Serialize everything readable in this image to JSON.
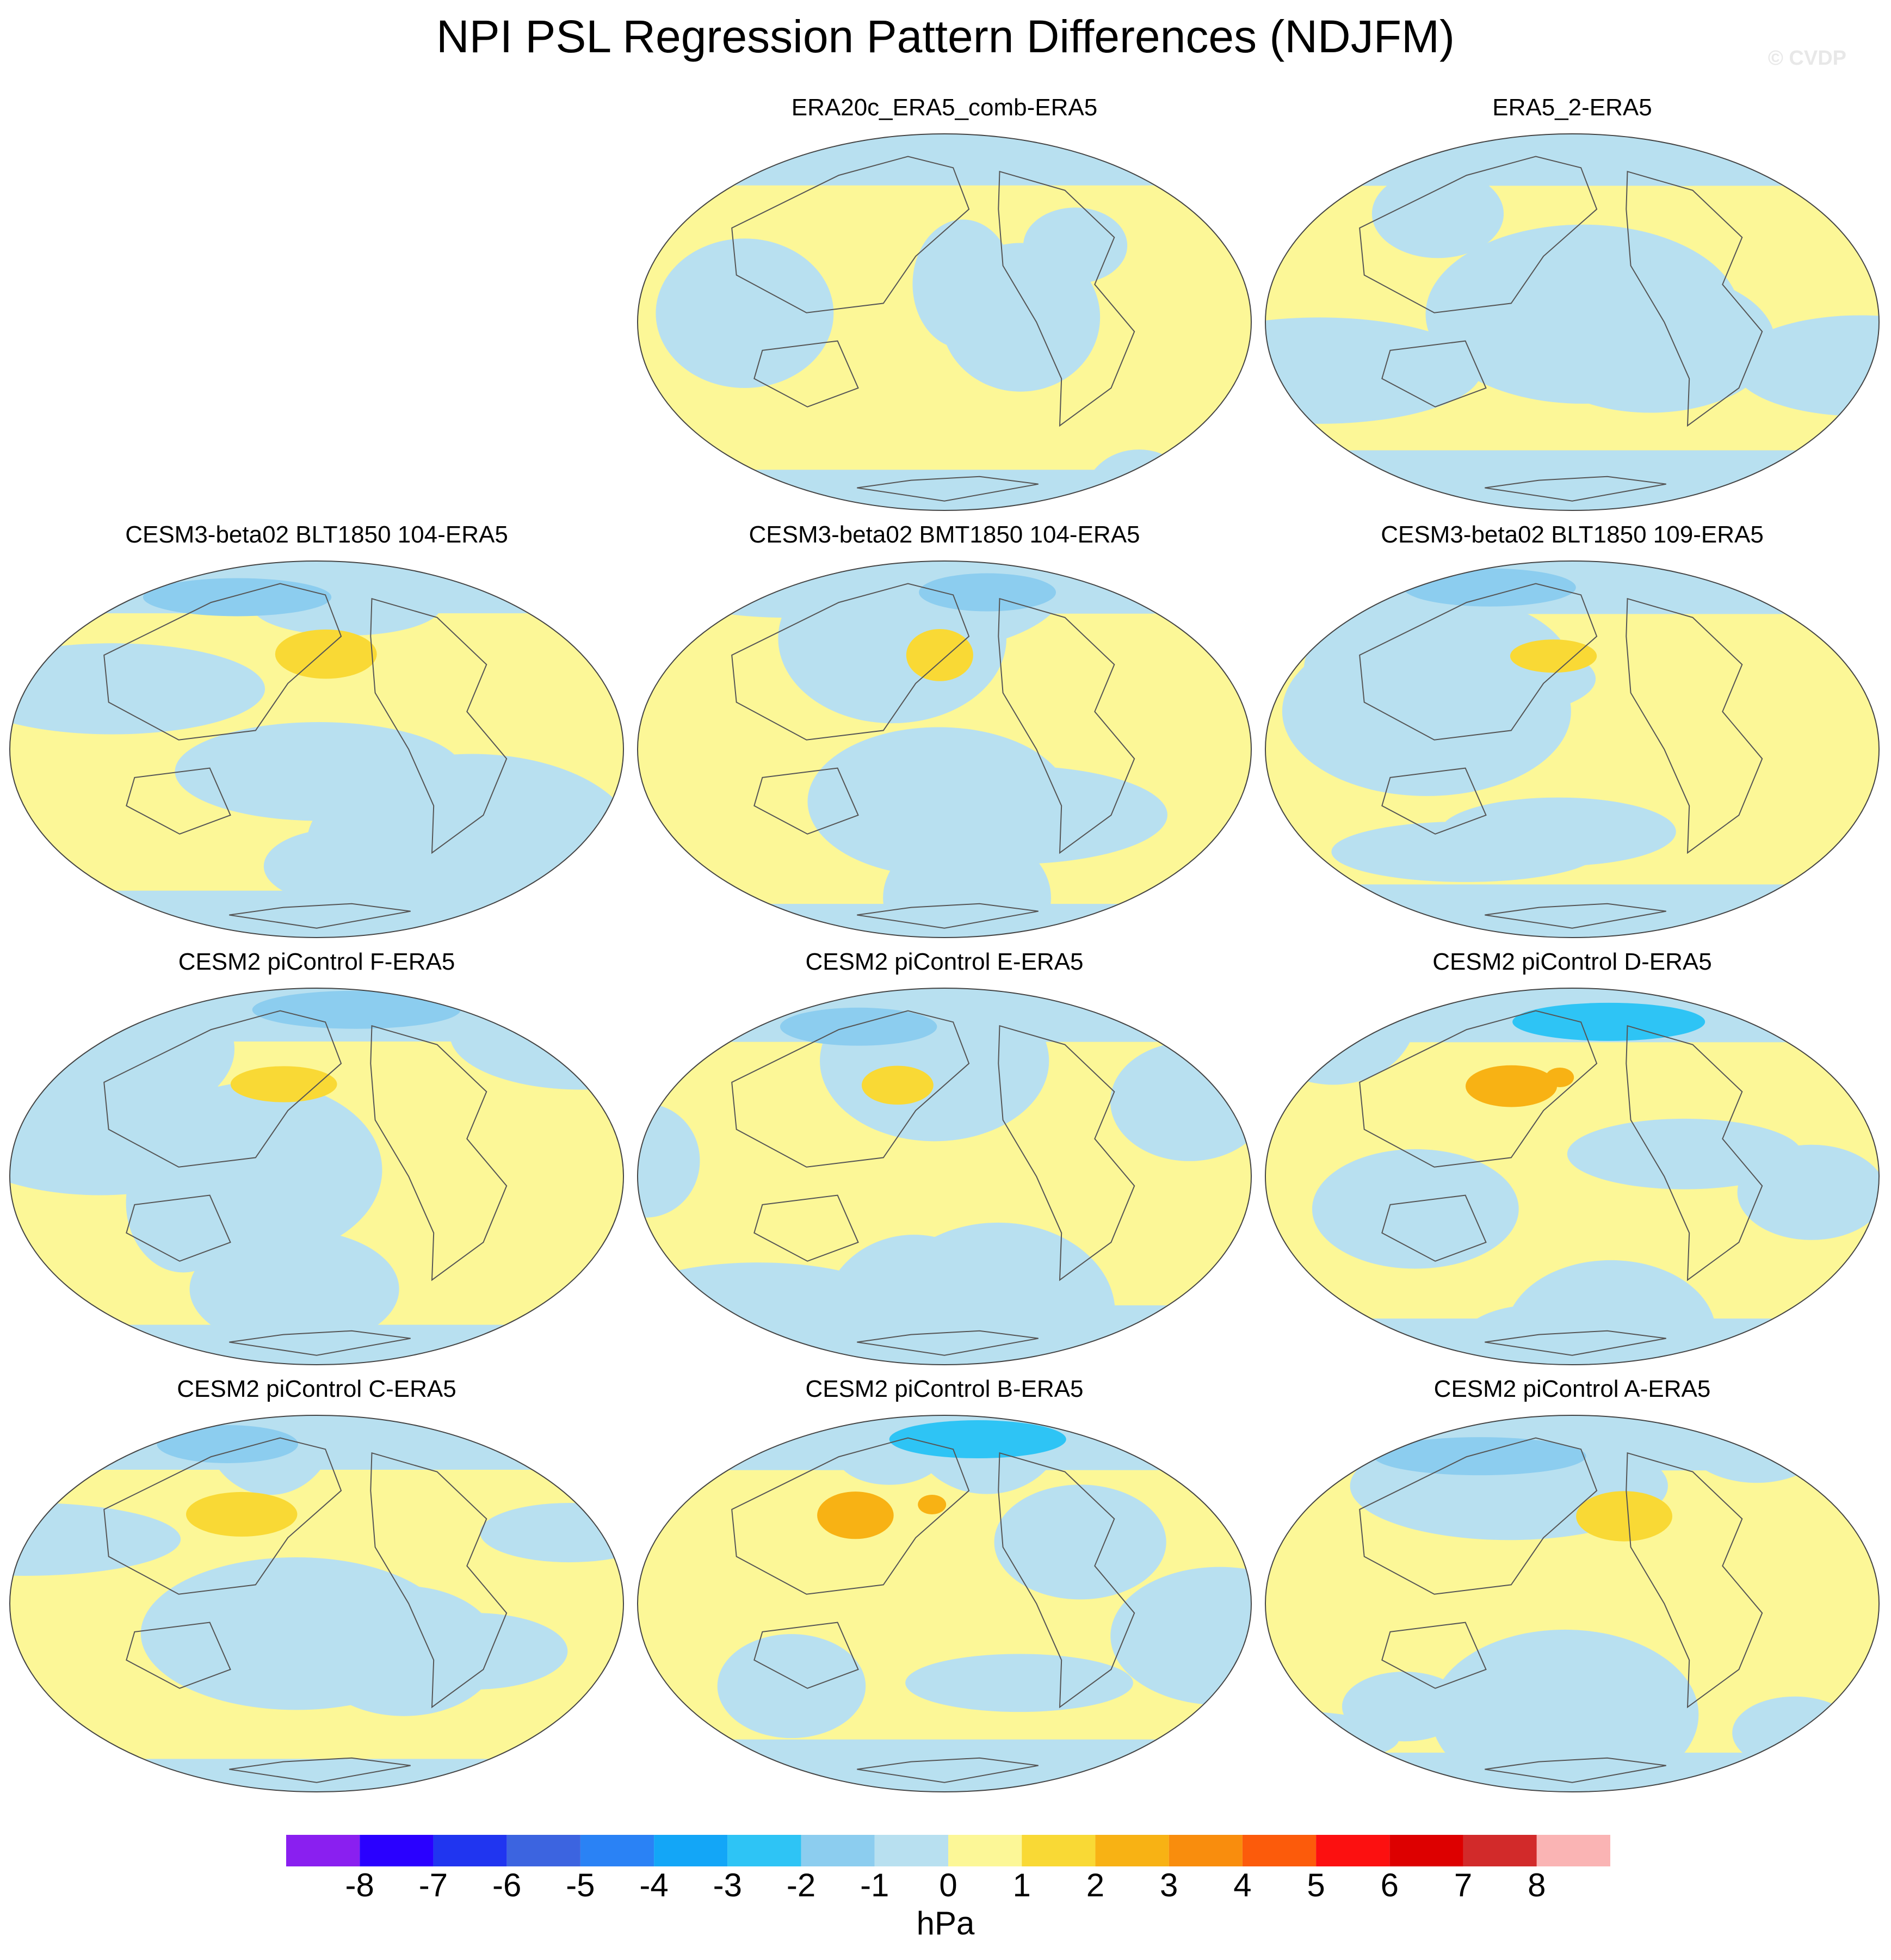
{
  "title": "NPI PSL Regression Pattern Differences (NDJFM)",
  "watermark": "© CVDP",
  "panels": [
    {
      "label": "ERA20c_ERA5_comb-ERA5",
      "max_abs_hpa": 1
    },
    {
      "label": "ERA5_2-ERA5",
      "max_abs_hpa": 1
    },
    {
      "label": "CESM3-beta02 BLT1850 104-ERA5",
      "max_abs_hpa": 2
    },
    {
      "label": "CESM3-beta02 BMT1850 104-ERA5",
      "max_abs_hpa": 2
    },
    {
      "label": "CESM3-beta02 BLT1850 109-ERA5",
      "max_abs_hpa": 2
    },
    {
      "label": "CESM2 piControl F-ERA5",
      "max_abs_hpa": 2
    },
    {
      "label": "CESM2 piControl E-ERA5",
      "max_abs_hpa": 2
    },
    {
      "label": "CESM2 piControl D-ERA5",
      "max_abs_hpa": 3
    },
    {
      "label": "CESM2 piControl C-ERA5",
      "max_abs_hpa": 2
    },
    {
      "label": "CESM2 piControl B-ERA5",
      "max_abs_hpa": 3
    },
    {
      "label": "CESM2 piControl A-ERA5",
      "max_abs_hpa": 2
    }
  ],
  "colorbar": {
    "units": "hPa",
    "tick_labels": [
      "-8",
      "-7",
      "-6",
      "-5",
      "-4",
      "-3",
      "-2",
      "-1",
      "0",
      "1",
      "2",
      "3",
      "4",
      "5",
      "6",
      "7",
      "8"
    ],
    "colors": [
      "#8a1ff0",
      "#2a00ff",
      "#2035f0",
      "#3c64e0",
      "#2a82f5",
      "#13a6f7",
      "#2ec4f5",
      "#8ccdef",
      "#b8e0f0",
      "#fcf797",
      "#f9d935",
      "#f8b214",
      "#f98d0d",
      "#fc5b0b",
      "#fc1010",
      "#dd0000",
      "#d22a2a",
      "#fab4b4"
    ]
  }
}
